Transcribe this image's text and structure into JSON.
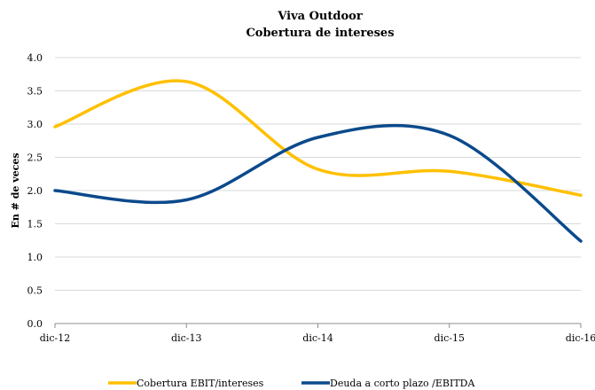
{
  "chart_data": {
    "type": "line",
    "title": "Viva Outdoor",
    "subtitle": "Cobertura de intereses",
    "ylabel": "En # de veces",
    "xlabel": "",
    "categories": [
      "dic-12",
      "dic-13",
      "dic-14",
      "dic-15",
      "dic-16"
    ],
    "ylim": [
      0,
      4
    ],
    "yticks": [
      "0.0",
      "0.5",
      "1.0",
      "1.5",
      "2.0",
      "2.5",
      "3.0",
      "3.5",
      "4.0"
    ],
    "grid": true,
    "legend_position": "bottom",
    "smooth": true,
    "series": [
      {
        "name": "Cobertura EBIT/intereses",
        "color": "#FFC000",
        "values": [
          2.96,
          3.64,
          2.32,
          2.29,
          1.93
        ]
      },
      {
        "name": "Deuda a corto plazo /EBITDA",
        "color": "#0B4A8B",
        "values": [
          2.0,
          1.86,
          2.8,
          2.83,
          1.24
        ]
      }
    ]
  }
}
